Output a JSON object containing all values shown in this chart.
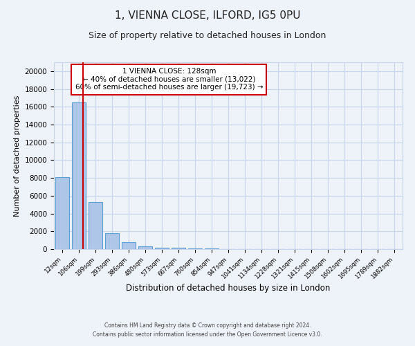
{
  "title": "1, VIENNA CLOSE, ILFORD, IG5 0PU",
  "subtitle": "Size of property relative to detached houses in London",
  "xlabel": "Distribution of detached houses by size in London",
  "ylabel": "Number of detached properties",
  "categories": [
    "12sqm",
    "106sqm",
    "199sqm",
    "293sqm",
    "386sqm",
    "480sqm",
    "573sqm",
    "667sqm",
    "760sqm",
    "854sqm",
    "947sqm",
    "1041sqm",
    "1134sqm",
    "1228sqm",
    "1321sqm",
    "1415sqm",
    "1508sqm",
    "1602sqm",
    "1695sqm",
    "1789sqm",
    "1882sqm"
  ],
  "values": [
    8100,
    16500,
    5300,
    1800,
    750,
    280,
    190,
    130,
    90,
    60,
    0,
    0,
    0,
    0,
    0,
    0,
    0,
    0,
    0,
    0,
    0
  ],
  "bar_color": "#aec6e8",
  "bar_edge_color": "#5a9fd4",
  "annotation_title": "1 VIENNA CLOSE: 128sqm",
  "annotation_line1": "← 40% of detached houses are smaller (13,022)",
  "annotation_line2": "60% of semi-detached houses are larger (19,723) →",
  "annotation_box_color": "#ffffff",
  "annotation_box_edge": "#cc0000",
  "ylim": [
    0,
    21000
  ],
  "yticks": [
    0,
    2000,
    4000,
    6000,
    8000,
    10000,
    12000,
    14000,
    16000,
    18000,
    20000
  ],
  "footer1": "Contains HM Land Registry data © Crown copyright and database right 2024.",
  "footer2": "Contains public sector information licensed under the Open Government Licence v3.0.",
  "bg_color": "#eef2f9",
  "grid_color": "#c8d4e8",
  "title_fontsize": 11,
  "subtitle_fontsize": 9,
  "red_line_x": 1.237
}
